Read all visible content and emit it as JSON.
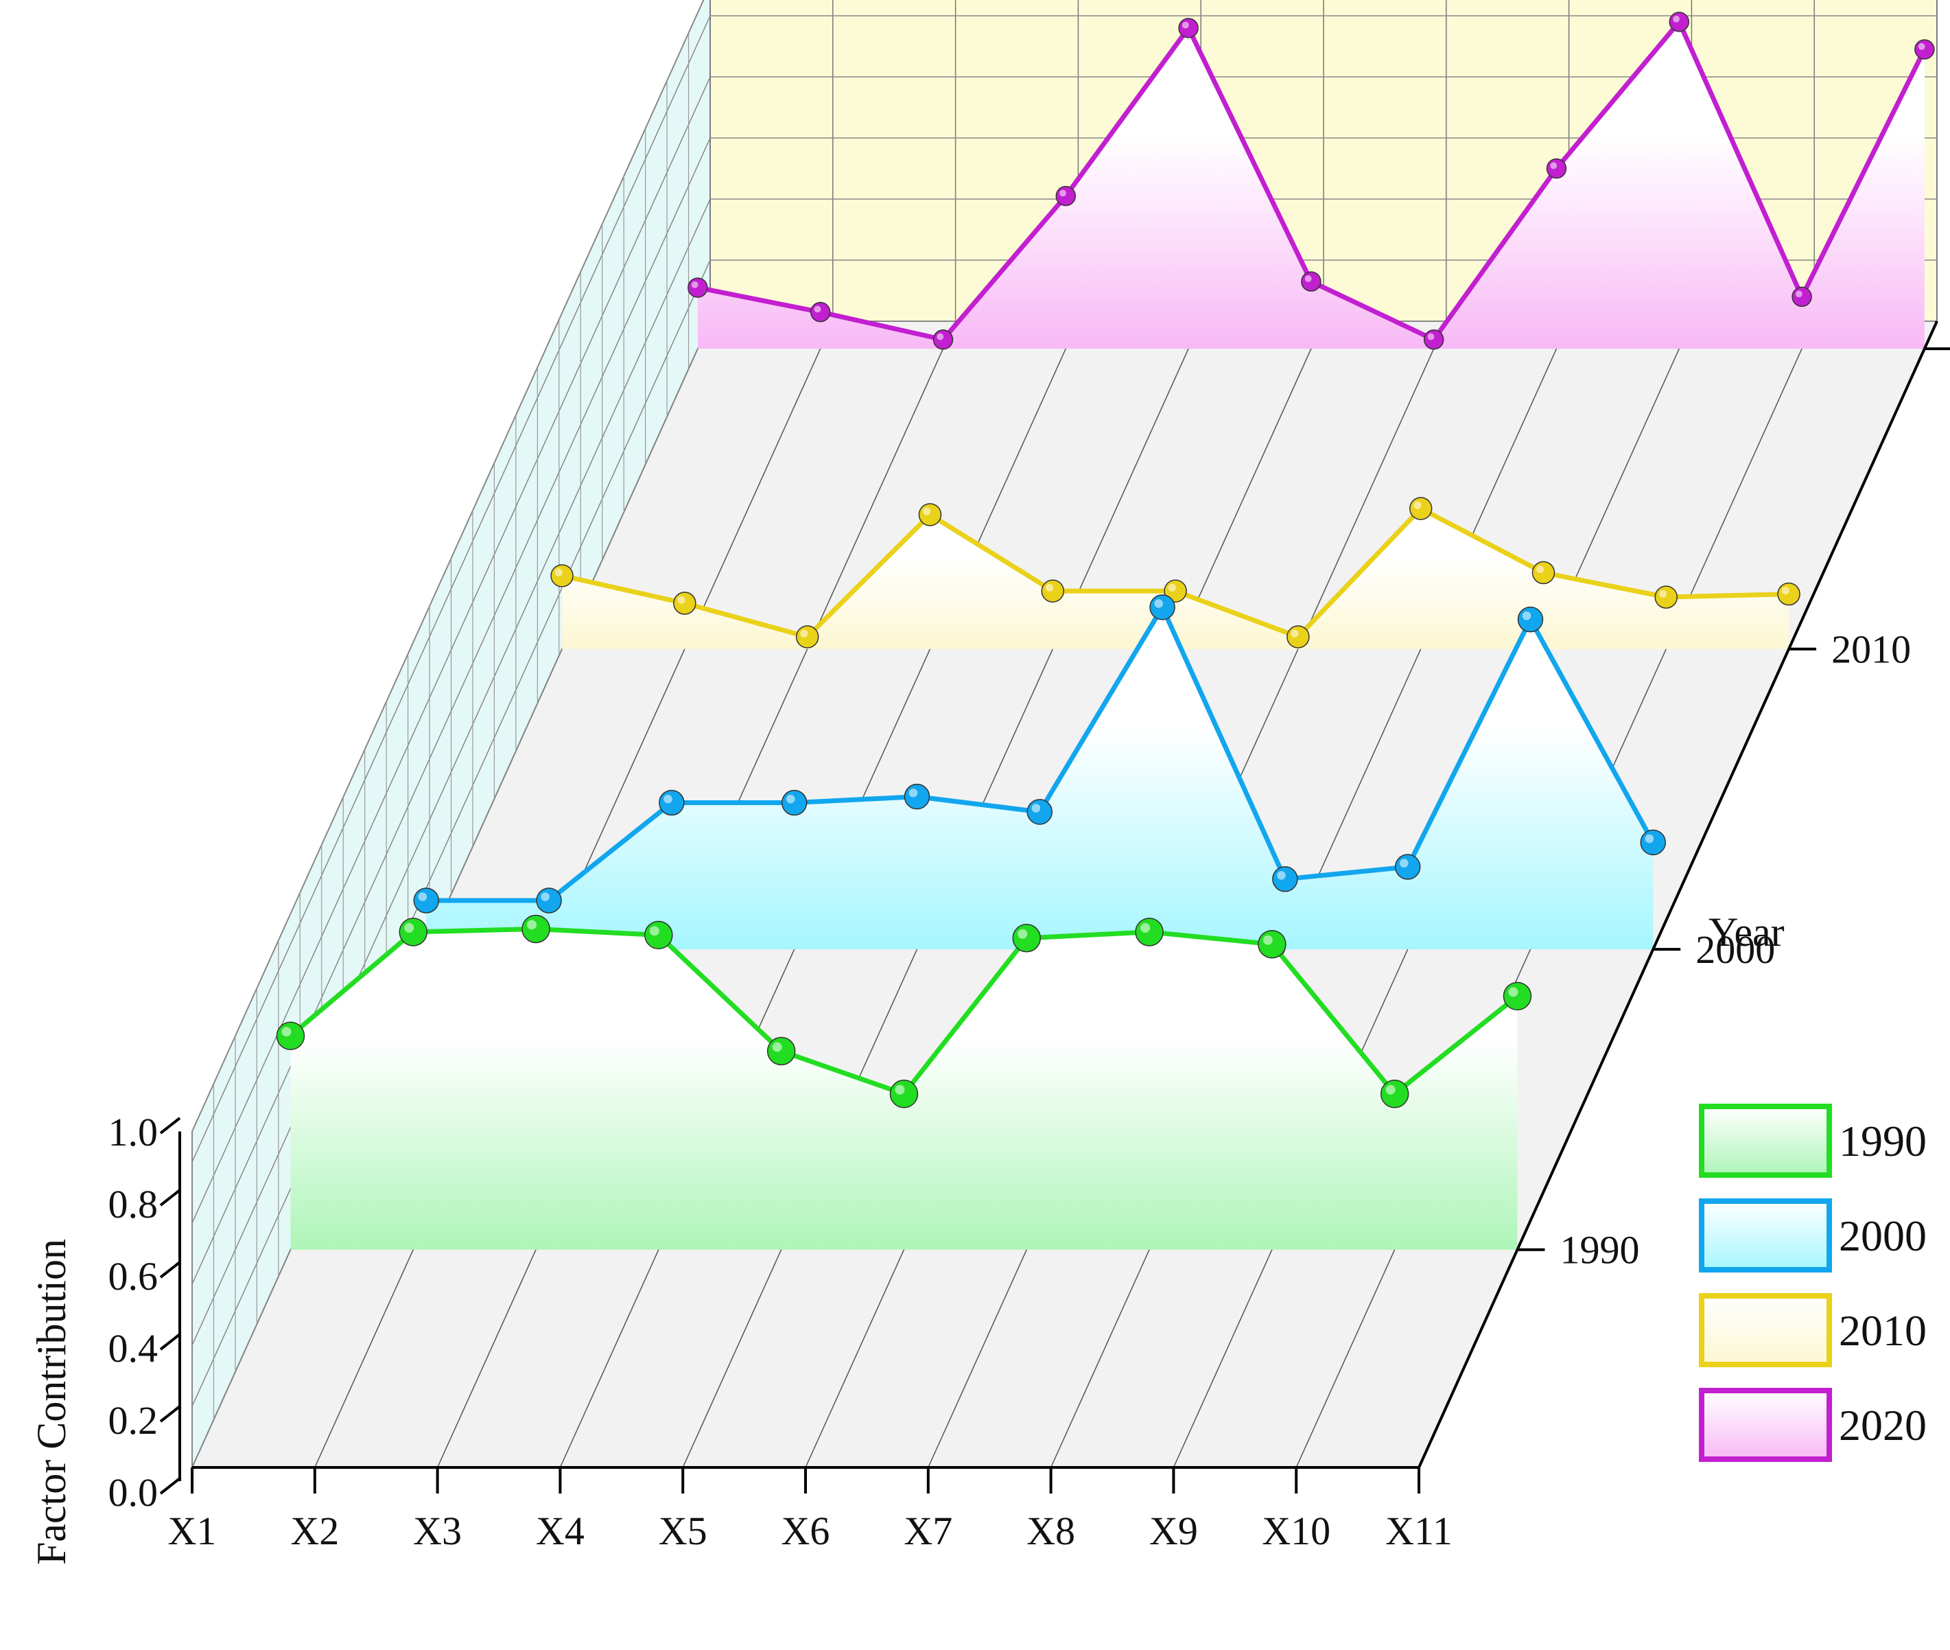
{
  "chart_data": {
    "type": "line",
    "title": "",
    "xlabel": "",
    "ylabel": "Factor Contribution",
    "zlabel": "Year",
    "categories": [
      "X1",
      "X2",
      "X3",
      "X4",
      "X5",
      "X6",
      "X7",
      "X8",
      "X9",
      "X10",
      "X11"
    ],
    "y_ticks": [
      "0.0",
      "0.2",
      "0.4",
      "0.6",
      "0.8",
      "1.0"
    ],
    "ylim": [
      0,
      1.1
    ],
    "grid": true,
    "legend_position": "bottom-right",
    "series": [
      {
        "name": "1990",
        "color": "#22dd22",
        "fill_top": "#ffffff",
        "fill_bottom": "#aef5b8",
        "values": [
          0.7,
          1.04,
          1.05,
          1.03,
          0.65,
          0.51,
          1.02,
          1.04,
          1.0,
          0.51,
          0.83
        ]
      },
      {
        "name": "2000",
        "color": "#11a6ee",
        "fill_top": "#ffffff",
        "fill_bottom": "#a6f6ff",
        "values": [
          0.16,
          0.16,
          0.48,
          0.48,
          0.5,
          0.45,
          1.12,
          0.23,
          0.27,
          1.08,
          0.35
        ]
      },
      {
        "name": "2010",
        "color": "#ead11a",
        "fill_top": "#ffffff",
        "fill_bottom": "#fcf7d2",
        "values": [
          0.24,
          0.15,
          0.04,
          0.44,
          0.19,
          0.19,
          0.04,
          0.46,
          0.25,
          0.17,
          0.18
        ]
      },
      {
        "name": "2020",
        "color": "#c21fd0",
        "fill_top": "#ffffff",
        "fill_bottom": "#f8b9f6",
        "values": [
          0.2,
          0.12,
          0.03,
          0.5,
          1.05,
          0.22,
          0.03,
          0.59,
          1.07,
          0.17,
          0.98
        ]
      }
    ]
  }
}
